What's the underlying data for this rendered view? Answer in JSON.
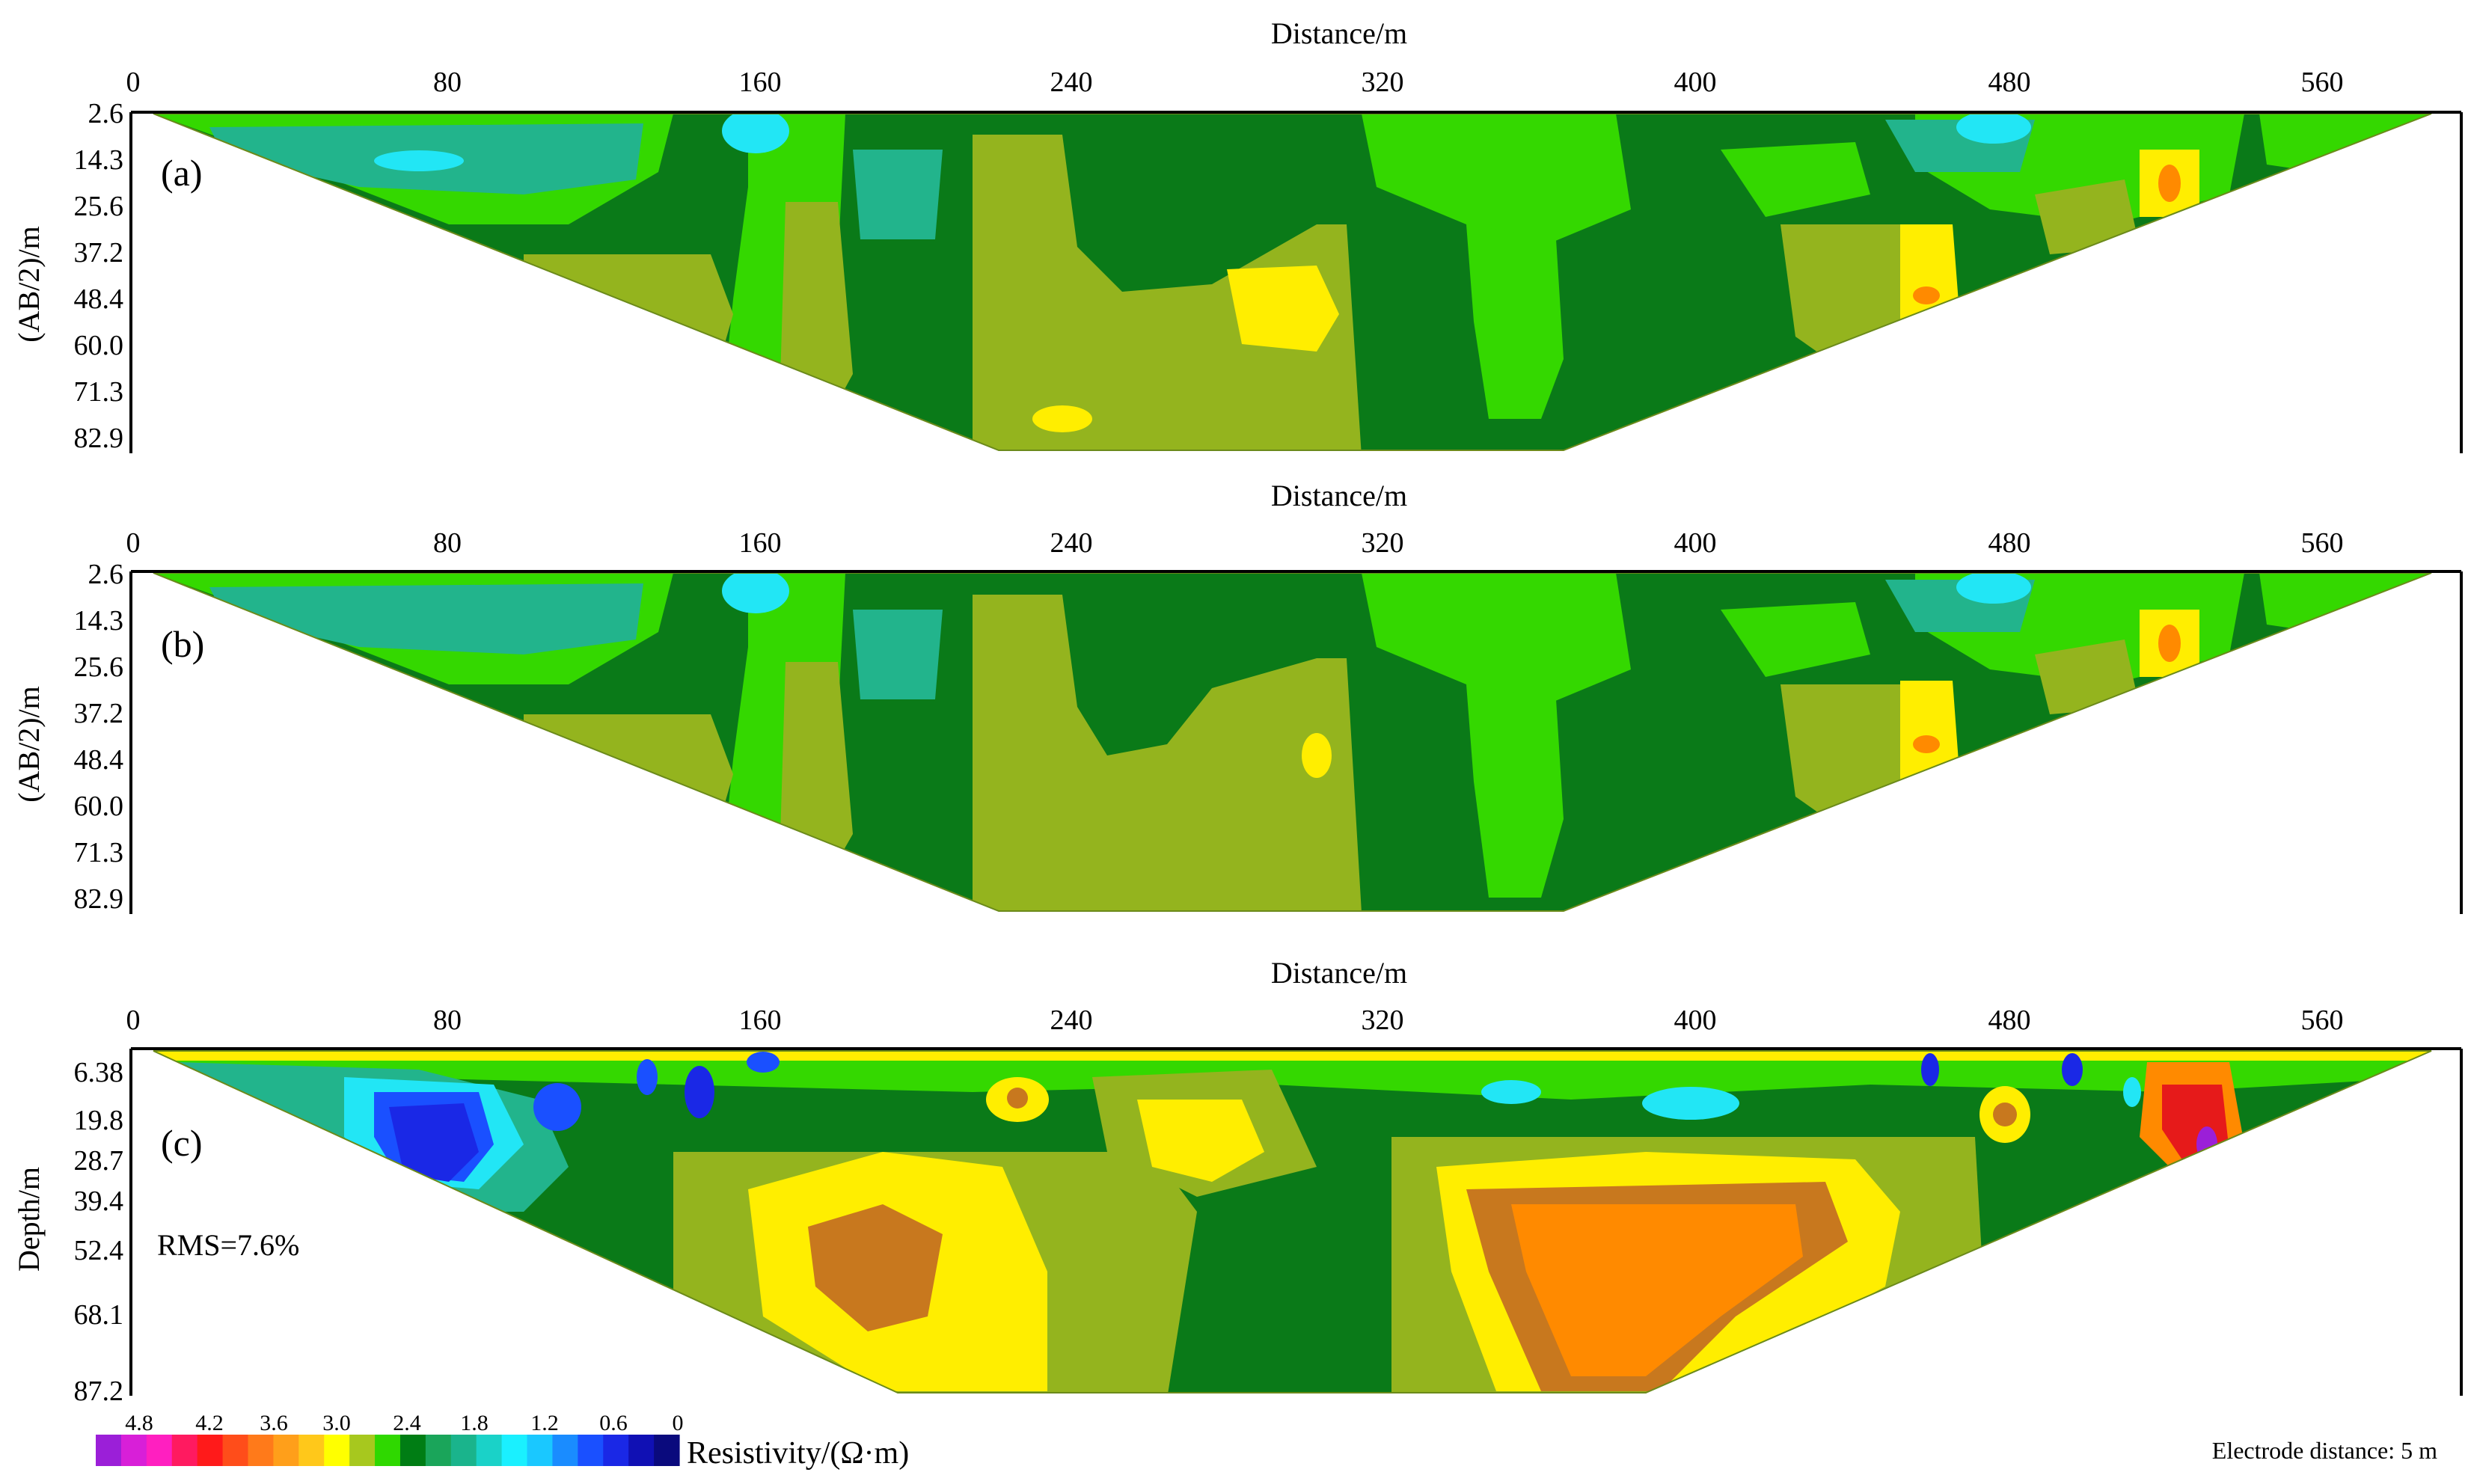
{
  "chart_data": [
    {
      "type": "heatmap",
      "panel_label": "(a)",
      "xlabel": "Distance/m",
      "ylabel": "(AB/2)/m",
      "xticks": [
        "0",
        "80",
        "160",
        "240",
        "320",
        "400",
        "480",
        "560"
      ],
      "yticks": [
        "2.6",
        "14.3",
        "25.6",
        "37.2",
        "48.4",
        "60.0",
        "71.3",
        "82.9"
      ],
      "xlim": [
        0,
        600
      ],
      "ylim": [
        2.6,
        82.9
      ],
      "section_shape": "inverted trapezoid (pseudo-section)",
      "bottom_extent_m": [
        225,
        370
      ],
      "anomalies": [
        {
          "x": 290,
          "y": 48,
          "level": "high (yellow)"
        },
        {
          "x": 455,
          "y": 42,
          "level": "high (yellow)"
        },
        {
          "x": 530,
          "y": 20,
          "level": "high (orange)"
        },
        {
          "x": 160,
          "y": 8,
          "level": "low (cyan)"
        },
        {
          "x": 480,
          "y": 8,
          "level": "low (cyan)"
        }
      ]
    },
    {
      "type": "heatmap",
      "panel_label": "(b)",
      "xlabel": "Distance/m",
      "ylabel": "(AB/2)/m",
      "xticks": [
        "0",
        "80",
        "160",
        "240",
        "320",
        "400",
        "480",
        "560"
      ],
      "yticks": [
        "2.6",
        "14.3",
        "25.6",
        "37.2",
        "48.4",
        "60.0",
        "71.3",
        "82.9"
      ],
      "xlim": [
        0,
        600
      ],
      "ylim": [
        2.6,
        82.9
      ],
      "section_shape": "inverted trapezoid (pseudo-section)",
      "bottom_extent_m": [
        225,
        370
      ],
      "anomalies": [
        {
          "x": 455,
          "y": 40,
          "level": "high (yellow)"
        },
        {
          "x": 530,
          "y": 20,
          "level": "high (orange)"
        },
        {
          "x": 160,
          "y": 8,
          "level": "low (cyan)"
        },
        {
          "x": 480,
          "y": 8,
          "level": "low (cyan)"
        }
      ]
    },
    {
      "type": "heatmap",
      "panel_label": "(c)",
      "xlabel": "Distance/m",
      "ylabel": "Depth/m",
      "annotation": "RMS=7.6%",
      "xticks": [
        "0",
        "80",
        "160",
        "240",
        "320",
        "400",
        "480",
        "560"
      ],
      "yticks": [
        "6.38",
        "19.8",
        "28.7",
        "39.4",
        "52.4",
        "68.1",
        "87.2"
      ],
      "xlim": [
        0,
        600
      ],
      "ylim": [
        6.38,
        87.2
      ],
      "section_shape": "inverted trapezoid (inversion model)",
      "bottom_extent_m": [
        195,
        395
      ],
      "anomalies": [
        {
          "x": 195,
          "y": 60,
          "level": "high (orange core)"
        },
        {
          "x": 390,
          "y": 60,
          "level": "high (orange core)"
        },
        {
          "x": 275,
          "y": 25,
          "level": "high (yellow)"
        },
        {
          "x": 80,
          "y": 28,
          "level": "low (dark blue)"
        },
        {
          "x": 530,
          "y": 26,
          "level": "high (red/purple)"
        }
      ]
    }
  ],
  "colorbar": {
    "title": "Resistivity/(Ω·m)",
    "tick_labels": [
      "4.8",
      "4.2",
      "3.6",
      "3.0",
      "2.4",
      "1.8",
      "1.2",
      "0.6",
      "0"
    ],
    "colors": [
      "#9b1fd8",
      "#d81fd8",
      "#ff1fc0",
      "#ff1a60",
      "#ff1a1a",
      "#ff4d1a",
      "#ff7a1a",
      "#ff9f1a",
      "#ffc81a",
      "#ffff00",
      "#a7c81e",
      "#2fd800",
      "#007d14",
      "#1aa55a",
      "#1ab48c",
      "#1ad2c8",
      "#1af0ff",
      "#1ac8ff",
      "#1a8cff",
      "#1a50ff",
      "#1a28e6",
      "#1010b4",
      "#0a0a7d"
    ]
  },
  "footer": {
    "electrode_distance": "Electrode distance: 5 m"
  },
  "colors": {
    "dark_green": "#0a7a18",
    "olive": "#94b41e",
    "bright_green": "#34d800",
    "teal": "#22b48c",
    "cyan": "#22e6f5",
    "yellow": "#ffee00",
    "orange": "#ff8a00",
    "brown_orange": "#c8781e",
    "blue": "#1a28e6",
    "red": "#e61a1a"
  }
}
